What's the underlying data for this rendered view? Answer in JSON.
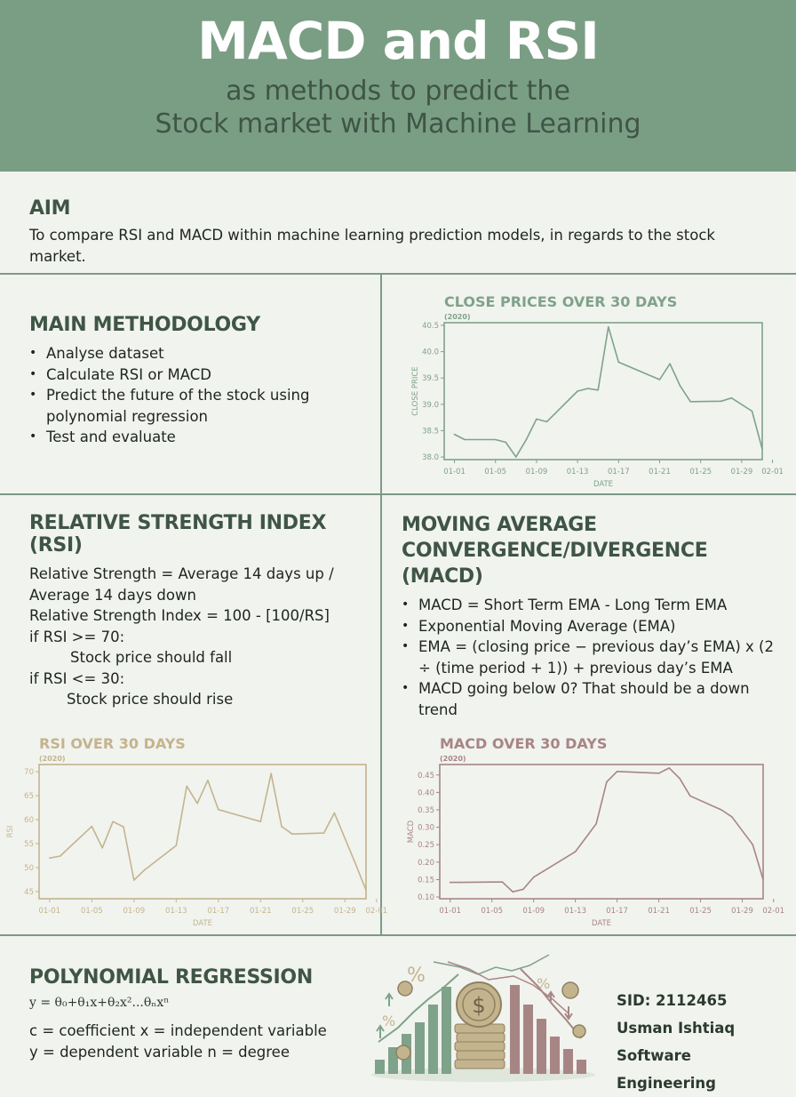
{
  "header": {
    "title": "MACD and RSI",
    "subtitle_line1": "as methods to predict the",
    "subtitle_line2": "Stock market with Machine Learning"
  },
  "aim": {
    "heading": "AIM",
    "text": "To compare RSI and MACD within machine learning prediction models, in regards to the stock market."
  },
  "methodology": {
    "heading": "MAIN METHODOLOGY",
    "items": [
      "Analyse dataset",
      "Calculate RSI or MACD",
      "Predict the future of the stock using polynomial regression",
      "Test and evaluate"
    ]
  },
  "rsi_section": {
    "heading": "RELATIVE STRENGTH INDEX (RSI)",
    "line1": "Relative Strength = Average 14 days up /",
    "line2": "Average 14 days down",
    "line3": "Relative Strength Index = 100 - [100/RS]",
    "line4": "if RSI >= 70:",
    "line5": "Stock price should fall",
    "line6": "if RSI <= 30:",
    "line7": "Stock price should rise"
  },
  "macd_section": {
    "heading_line1": "MOVING AVERAGE",
    "heading_line2": "CONVERGENCE/DIVERGENCE",
    "heading_line3": "(MACD)",
    "items": [
      "MACD =  Short Term EMA - Long Term EMA",
      "Exponential Moving Average (EMA)",
      "EMA =  (closing price − previous day’s EMA) x (2 ÷ (time period + 1)) + previous day’s EMA",
      "MACD going below 0? That should be a down trend"
    ]
  },
  "polynomial": {
    "heading": "POLYNOMIAL REGRESSION",
    "formula": "y = θ₀+θ₁x+θ₂x²...θₙxⁿ",
    "def1": "c = coefficient    x = independent variable",
    "def2": "y = dependent variable    n = degree"
  },
  "author": {
    "sid": "SID: 2112465",
    "name": "Usman Ishtiaq",
    "course": "Software Engineering"
  },
  "colors": {
    "header_bg": "#7a9e84",
    "close_chart": "#7fa28a",
    "rsi_chart": "#c4b48e",
    "macd_chart": "#a88585"
  },
  "chart_data": [
    {
      "type": "line",
      "title": "CLOSE PRICES OVER 30 DAYS",
      "subtitle": "(2020)",
      "xlabel": "DATE",
      "ylabel": "CLOSE PRICE",
      "x_ticks": [
        "01-01",
        "01-05",
        "01-09",
        "01-13",
        "01-17",
        "01-21",
        "01-25",
        "01-29",
        "02-01"
      ],
      "y_ticks": [
        "38.0",
        "38.5",
        "39.0",
        "39.5",
        "40.0",
        "40.5"
      ],
      "xlim": [
        0,
        31
      ],
      "ylim": [
        37.95,
        40.55
      ],
      "x": [
        1,
        2,
        5,
        6,
        7,
        8,
        9,
        10,
        13,
        14,
        15,
        16,
        17,
        21,
        22,
        23,
        24,
        27,
        28,
        30,
        31
      ],
      "y": [
        38.43,
        38.33,
        38.33,
        38.28,
        38.0,
        38.33,
        38.72,
        38.67,
        39.25,
        39.3,
        39.27,
        40.47,
        39.8,
        39.47,
        39.77,
        39.35,
        39.05,
        39.06,
        39.12,
        38.87,
        38.15
      ],
      "grid": false,
      "legend": "none"
    },
    {
      "type": "line",
      "title": "RSI OVER 30 DAYS",
      "subtitle": "(2020)",
      "xlabel": "DATE",
      "ylabel": "RSI",
      "x_ticks": [
        "01-01",
        "01-05",
        "01-09",
        "01-13",
        "01-17",
        "01-21",
        "01-25",
        "01-29",
        "02-01"
      ],
      "y_ticks": [
        "45",
        "50",
        "55",
        "60",
        "65",
        "70"
      ],
      "xlim": [
        0,
        31
      ],
      "ylim": [
        43.5,
        71.5
      ],
      "x": [
        1,
        2,
        5,
        6,
        7,
        8,
        9,
        10,
        13,
        14,
        15,
        16,
        17,
        21,
        22,
        23,
        24,
        27,
        28,
        30,
        31
      ],
      "y": [
        52,
        52.4,
        58.6,
        54.1,
        59.6,
        58.5,
        47.4,
        49.5,
        54.6,
        67,
        63.4,
        68.2,
        62.1,
        59.6,
        69.6,
        58.6,
        57,
        57.2,
        61.4,
        50.8,
        45.3
      ],
      "grid": false,
      "legend": "none"
    },
    {
      "type": "line",
      "title": "MACD OVER 30 DAYS",
      "subtitle": "(2020)",
      "xlabel": "DATE",
      "ylabel": "MACD",
      "x_ticks": [
        "01-01",
        "01-05",
        "01-09",
        "01-13",
        "01-17",
        "01-21",
        "01-25",
        "01-29",
        "02-01"
      ],
      "y_ticks": [
        "0.10",
        "0.15",
        "0.20",
        "0.25",
        "0.30",
        "0.35",
        "0.40",
        "0.45"
      ],
      "xlim": [
        0,
        31
      ],
      "ylim": [
        0.095,
        0.48
      ],
      "x": [
        1,
        2,
        5,
        6,
        7,
        8,
        9,
        10,
        13,
        14,
        15,
        16,
        17,
        21,
        22,
        23,
        24,
        27,
        28,
        30,
        31
      ],
      "y": [
        0.142,
        0.142,
        0.143,
        0.143,
        0.115,
        0.122,
        0.157,
        0.175,
        0.23,
        0.27,
        0.31,
        0.43,
        0.46,
        0.455,
        0.47,
        0.44,
        0.39,
        0.35,
        0.33,
        0.25,
        0.15
      ],
      "grid": false,
      "legend": "none"
    }
  ]
}
